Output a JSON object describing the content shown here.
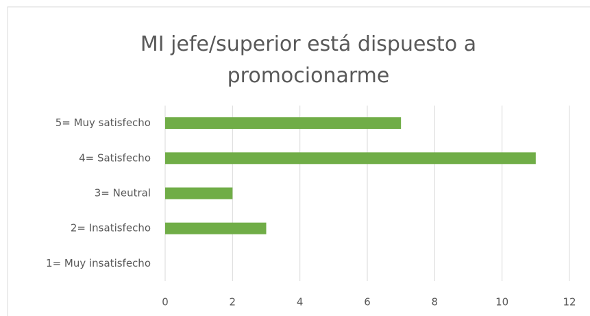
{
  "chart_data": {
    "type": "bar",
    "orientation": "horizontal",
    "title": "MI jefe/superior está dispuesto a promocionarme",
    "categories": [
      "5= Muy satisfecho",
      "4= Satisfecho",
      "3= Neutral",
      "2= Insatisfecho",
      "1= Muy insatisfecho"
    ],
    "values": [
      7,
      11,
      2,
      3,
      0
    ],
    "color": "#70ad47",
    "xlim": [
      0,
      12
    ],
    "xticks": [
      0,
      2,
      4,
      6,
      8,
      10,
      12
    ],
    "grid": true
  }
}
